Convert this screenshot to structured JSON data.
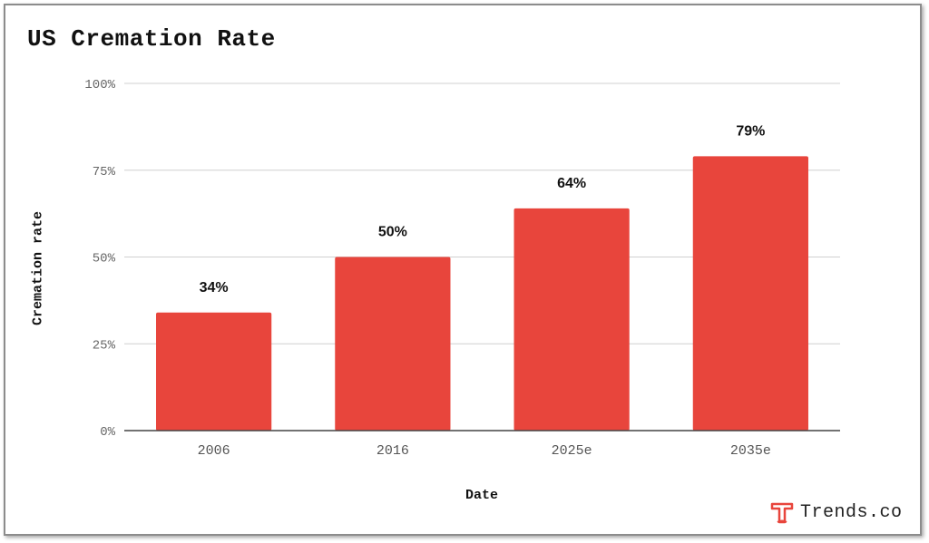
{
  "chart_data": {
    "type": "bar",
    "title": "US Cremation Rate",
    "xlabel": "Date",
    "ylabel": "Cremation rate",
    "categories": [
      "2006",
      "2016",
      "2025e",
      "2035e"
    ],
    "values": [
      34,
      50,
      64,
      79
    ],
    "data_labels": [
      "34%",
      "50%",
      "64%",
      "79%"
    ],
    "ylim": [
      0,
      100
    ],
    "y_ticks": [
      0,
      25,
      50,
      75,
      100
    ],
    "y_tick_labels": [
      "0%",
      "25%",
      "50%",
      "75%",
      "100%"
    ],
    "grid": true,
    "legend": "none",
    "bar_color": "#E8453C"
  },
  "brand": {
    "text": "Trends.co",
    "icon": "trends-logo-icon",
    "color": "#E8453C"
  }
}
